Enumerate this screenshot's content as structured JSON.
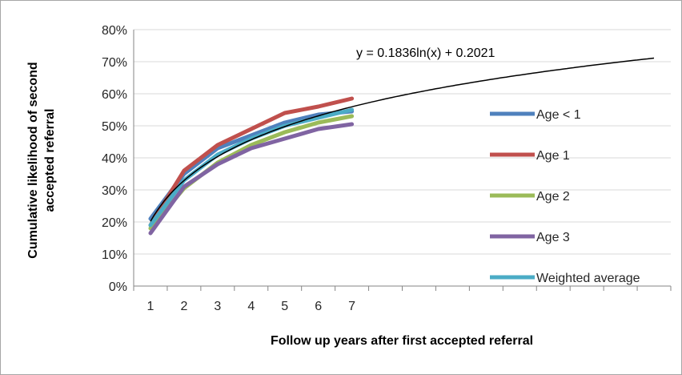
{
  "chart_data": {
    "type": "line",
    "xlabel": "Follow up years after first accepted referral",
    "ylabel": "Cumulative likelihood of second accepted referral",
    "x": [
      1,
      2,
      3,
      4,
      5,
      6,
      7
    ],
    "xlim": [
      0.5,
      16.5
    ],
    "ylim": [
      0,
      0.8
    ],
    "y_ticks": [
      0,
      0.1,
      0.2,
      0.3,
      0.4,
      0.5,
      0.6,
      0.7,
      0.8
    ],
    "y_tick_labels": [
      "0%",
      "10%",
      "20%",
      "30%",
      "40%",
      "50%",
      "60%",
      "70%",
      "80%"
    ],
    "x_tick_labels": [
      "1",
      "2",
      "3",
      "4",
      "5",
      "6",
      "7"
    ],
    "grid": "horizontal",
    "legend_position": "right",
    "series": [
      {
        "name": "Age < 1",
        "color": "#4f81bd",
        "values": [
          0.21,
          0.35,
          0.43,
          0.47,
          0.51,
          0.535,
          0.545
        ]
      },
      {
        "name": "Age 1",
        "color": "#c0504d",
        "values": [
          0.19,
          0.36,
          0.44,
          0.49,
          0.54,
          0.56,
          0.585
        ]
      },
      {
        "name": "Age 2",
        "color": "#9bbb59",
        "values": [
          0.18,
          0.305,
          0.385,
          0.44,
          0.48,
          0.51,
          0.53
        ]
      },
      {
        "name": "Age 3",
        "color": "#8064a2",
        "values": [
          0.165,
          0.31,
          0.38,
          0.43,
          0.46,
          0.49,
          0.505
        ]
      },
      {
        "name": "Weighted average",
        "color": "#4bacc6",
        "values": [
          0.19,
          0.33,
          0.41,
          0.46,
          0.5,
          0.525,
          0.55
        ]
      }
    ],
    "trendline": {
      "equation": "y = 0.1836ln(x) + 0.2021",
      "slope": 0.1836,
      "intercept": 0.2021,
      "x_range": [
        1,
        16
      ],
      "color": "#000000"
    }
  }
}
